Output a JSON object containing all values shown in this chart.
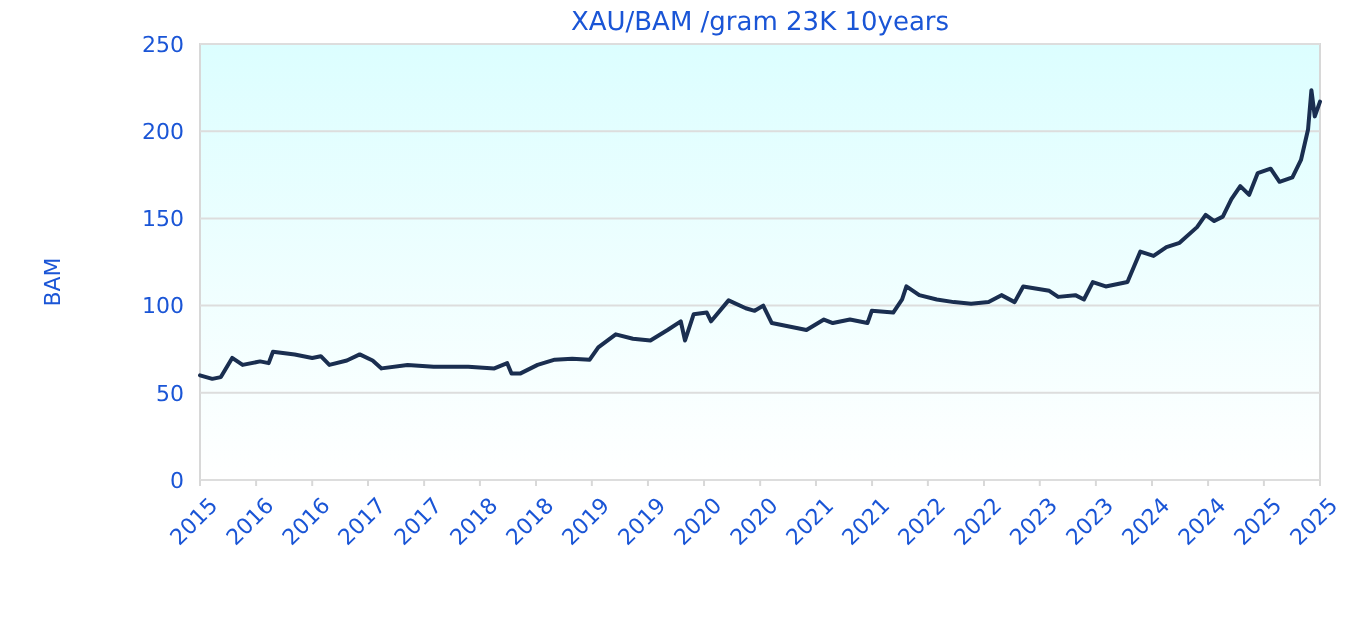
{
  "chart_data": {
    "type": "line",
    "title": "XAU/BAM /gram 23K 10years",
    "ylabel": "BAM",
    "x": [
      "2015-10-01",
      "2015-11-10",
      "2015-12-08",
      "2016-01-14",
      "2016-02-17",
      "2016-04-14",
      "2016-05-12",
      "2016-05-26",
      "2016-08-05",
      "2016-10-01",
      "2016-10-29",
      "2016-11-26",
      "2017-01-22",
      "2017-03-05",
      "2017-04-16",
      "2017-05-15",
      "2017-08-08",
      "2017-11-01",
      "2018-02-22",
      "2018-05-18",
      "2018-06-29",
      "2018-07-13",
      "2018-08-10",
      "2018-10-06",
      "2018-12-01",
      "2019-01-27",
      "2019-03-25",
      "2019-04-22",
      "2019-06-18",
      "2019-08-13",
      "2019-10-09",
      "2019-12-04",
      "2020-01-16",
      "2020-01-30",
      "2020-02-27",
      "2020-04-10",
      "2020-04-24",
      "2020-06-20",
      "2020-08-15",
      "2020-09-13",
      "2020-10-11",
      "2020-11-08",
      "2021-02-01",
      "2021-03-01",
      "2021-04-27",
      "2021-05-26",
      "2021-07-21",
      "2021-09-16",
      "2021-09-30",
      "2021-12-09",
      "2022-01-07",
      "2022-01-21",
      "2022-03-04",
      "2022-04-30",
      "2022-06-25",
      "2022-08-20",
      "2022-10-16",
      "2022-11-27",
      "2023-01-09",
      "2023-02-06",
      "2023-05-02",
      "2023-05-31",
      "2023-07-26",
      "2023-08-23",
      "2023-09-21",
      "2023-11-02",
      "2024-01-12",
      "2024-02-23",
      "2024-04-06",
      "2024-05-18",
      "2024-06-30",
      "2024-08-26",
      "2024-09-23",
      "2024-10-21",
      "2024-11-18",
      "2024-12-16",
      "2025-01-14",
      "2025-02-12",
      "2025-03-12",
      "2025-04-23",
      "2025-05-22",
      "2025-07-03",
      "2025-07-31",
      "2025-08-23",
      "2025-09-03",
      "2025-09-14",
      "2025-10-01"
    ],
    "series": [
      {
        "color": "#1a2e50",
        "values": [
          60,
          58,
          59,
          70,
          66,
          68,
          67,
          73.5,
          72,
          70,
          71,
          66,
          68.5,
          72,
          68.5,
          64,
          66,
          65,
          65,
          64,
          67,
          61,
          61,
          66,
          69,
          69.5,
          69,
          76,
          83.5,
          81,
          80,
          86,
          91,
          80,
          95,
          96,
          91,
          103,
          98.5,
          97,
          100,
          90,
          87,
          86,
          92,
          90,
          92,
          90,
          97,
          96,
          103.5,
          111,
          106,
          103.5,
          102,
          101,
          102,
          106,
          102,
          111,
          108.5,
          105,
          106,
          103.5,
          113.5,
          111,
          113.5,
          131,
          128.5,
          133.5,
          136,
          145,
          152,
          148.5,
          151,
          161,
          168.5,
          163.5,
          176,
          178.5,
          171,
          173.5,
          183.5,
          201,
          223.5,
          208.5,
          217
        ]
      }
    ],
    "xlim": [
      "2015-10-01",
      "2025-10-01"
    ],
    "xticks": [
      {
        "value": "2015-10-01",
        "label": "2015"
      },
      {
        "value": "2016-04-01",
        "label": "2016"
      },
      {
        "value": "2016-10-01",
        "label": "2016"
      },
      {
        "value": "2017-04-01",
        "label": "2017"
      },
      {
        "value": "2017-10-01",
        "label": "2017"
      },
      {
        "value": "2018-04-01",
        "label": "2018"
      },
      {
        "value": "2018-10-01",
        "label": "2018"
      },
      {
        "value": "2019-04-01",
        "label": "2019"
      },
      {
        "value": "2019-10-01",
        "label": "2019"
      },
      {
        "value": "2020-04-01",
        "label": "2020"
      },
      {
        "value": "2020-10-01",
        "label": "2020"
      },
      {
        "value": "2021-04-01",
        "label": "2021"
      },
      {
        "value": "2021-10-01",
        "label": "2021"
      },
      {
        "value": "2022-04-01",
        "label": "2022"
      },
      {
        "value": "2022-10-01",
        "label": "2022"
      },
      {
        "value": "2023-04-01",
        "label": "2023"
      },
      {
        "value": "2023-10-01",
        "label": "2023"
      },
      {
        "value": "2024-04-01",
        "label": "2024"
      },
      {
        "value": "2024-10-01",
        "label": "2024"
      },
      {
        "value": "2025-04-01",
        "label": "2025"
      },
      {
        "value": "2025-10-01",
        "label": "2025"
      }
    ],
    "ylim": [
      0,
      250
    ],
    "yticks": [
      0,
      50,
      100,
      150,
      200,
      250
    ],
    "grid": "y",
    "marker": "none",
    "line_style": "solid"
  }
}
